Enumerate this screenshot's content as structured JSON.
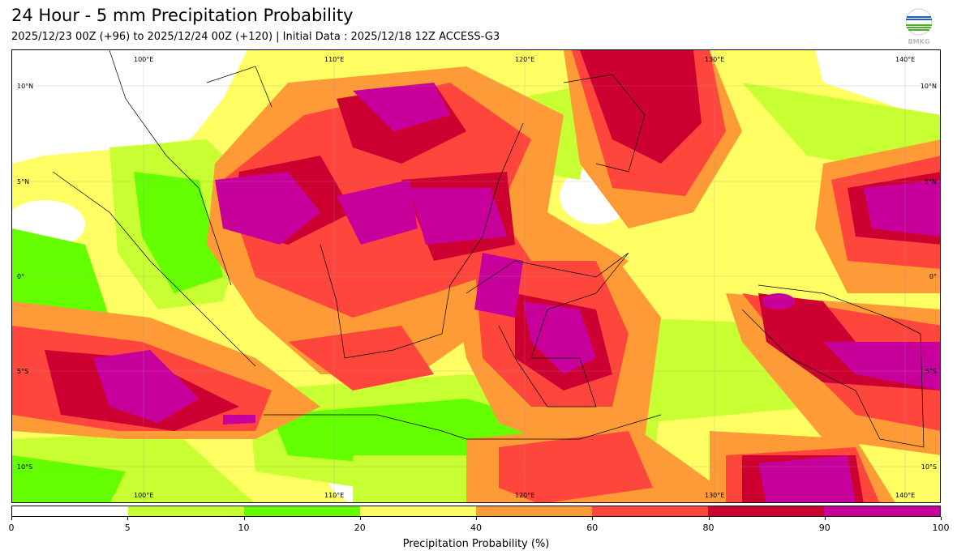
{
  "title": "24 Hour - 5 mm Precipitation Probability",
  "subtitle": "2025/12/23 00Z (+96) to 2025/12/24 00Z (+120) | Initial Data : 2025/12/18 12Z ACCESS-G3",
  "logo_text": "BMKG",
  "map": {
    "lon_labels": [
      "100°E",
      "110°E",
      "120°E",
      "130°E",
      "140°E"
    ],
    "lat_labels": [
      "10°N",
      "5°N",
      "0°",
      "5°S",
      "10°S"
    ]
  },
  "colorbar": {
    "label": "Precipitation Probability (%)",
    "ticks": [
      "0",
      "5",
      "10",
      "20",
      "40",
      "60",
      "80",
      "90",
      "100"
    ],
    "colors": [
      "#ffffff",
      "#c8ff32",
      "#64ff00",
      "#ffff64",
      "#ff9b37",
      "#ff463c",
      "#cd0032",
      "#c8009b"
    ]
  }
}
